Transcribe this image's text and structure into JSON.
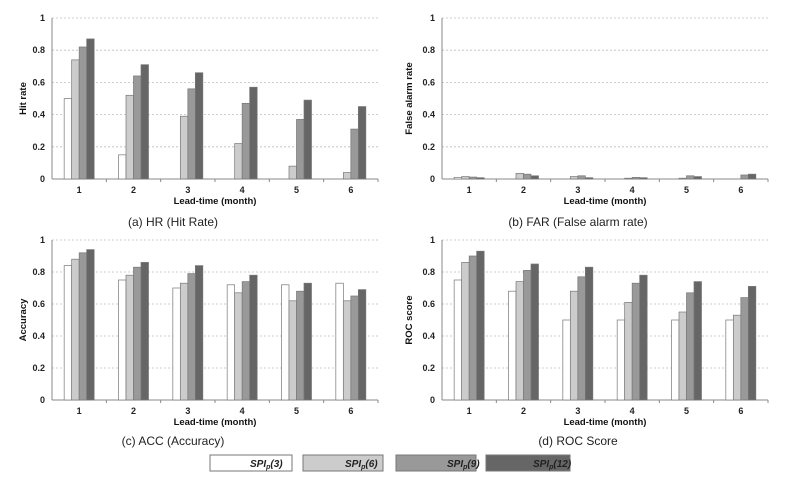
{
  "chart_data": [
    {
      "type": "bar",
      "id": "hr",
      "caption": "(a) HR (Hit Rate)",
      "xlabel": "Lead-time (month)",
      "ylabel": "Hit rate",
      "categories": [
        "1",
        "2",
        "3",
        "4",
        "5",
        "6"
      ],
      "ylim": [
        0,
        1
      ],
      "yticks": [
        "0",
        "0.2",
        "0.4",
        "0.6",
        "0.8",
        "1"
      ],
      "grid": true,
      "series": [
        {
          "name": "SPI_p(3)",
          "values": [
            0.5,
            0.15,
            0.0,
            0.0,
            0.0,
            0.0
          ]
        },
        {
          "name": "SPI_p(6)",
          "values": [
            0.74,
            0.52,
            0.39,
            0.22,
            0.08,
            0.04
          ]
        },
        {
          "name": "SPI_p(9)",
          "values": [
            0.82,
            0.64,
            0.56,
            0.47,
            0.37,
            0.31
          ]
        },
        {
          "name": "SPI_p(12)",
          "values": [
            0.87,
            0.71,
            0.66,
            0.57,
            0.49,
            0.45
          ]
        }
      ]
    },
    {
      "type": "bar",
      "id": "far",
      "caption": "(b) FAR (False alarm rate)",
      "xlabel": "Lead-time (month)",
      "ylabel": "False alarm rate",
      "categories": [
        "1",
        "2",
        "3",
        "4",
        "5",
        "6"
      ],
      "ylim": [
        0,
        1
      ],
      "yticks": [
        "0",
        "0.2",
        "0.4",
        "0.6",
        "0.8",
        "1"
      ],
      "grid": true,
      "series": [
        {
          "name": "SPI_p(3)",
          "values": [
            0.01,
            0.0,
            0.0,
            0.0,
            0.0,
            0.0
          ]
        },
        {
          "name": "SPI_p(6)",
          "values": [
            0.015,
            0.035,
            0.015,
            0.005,
            0.005,
            0.0
          ]
        },
        {
          "name": "SPI_p(9)",
          "values": [
            0.012,
            0.03,
            0.02,
            0.01,
            0.02,
            0.025
          ]
        },
        {
          "name": "SPI_p(12)",
          "values": [
            0.008,
            0.02,
            0.008,
            0.008,
            0.015,
            0.03
          ]
        }
      ]
    },
    {
      "type": "bar",
      "id": "acc",
      "caption": "(c)  ACC (Accuracy)",
      "xlabel": "Lead-time (month)",
      "ylabel": "Accuracy",
      "categories": [
        "1",
        "2",
        "3",
        "4",
        "5",
        "6"
      ],
      "ylim": [
        0,
        1
      ],
      "yticks": [
        "0",
        "0.2",
        "0.4",
        "0.6",
        "0.8",
        "1"
      ],
      "grid": true,
      "series": [
        {
          "name": "SPI_p(3)",
          "values": [
            0.84,
            0.75,
            0.7,
            0.72,
            0.72,
            0.73
          ]
        },
        {
          "name": "SPI_p(6)",
          "values": [
            0.88,
            0.78,
            0.73,
            0.67,
            0.62,
            0.62
          ]
        },
        {
          "name": "SPI_p(9)",
          "values": [
            0.92,
            0.83,
            0.79,
            0.74,
            0.68,
            0.65
          ]
        },
        {
          "name": "SPI_p(12)",
          "values": [
            0.94,
            0.86,
            0.84,
            0.78,
            0.73,
            0.69
          ]
        }
      ]
    },
    {
      "type": "bar",
      "id": "roc",
      "caption": "(d) ROC Score",
      "xlabel": "Lead-time (month)",
      "ylabel": "ROC score",
      "categories": [
        "1",
        "2",
        "3",
        "4",
        "5",
        "6"
      ],
      "ylim": [
        0,
        1
      ],
      "yticks": [
        "0",
        "0.2",
        "0.4",
        "0.6",
        "0.8",
        "1"
      ],
      "grid": true,
      "series": [
        {
          "name": "SPI_p(3)",
          "values": [
            0.75,
            0.68,
            0.5,
            0.5,
            0.5,
            0.5
          ]
        },
        {
          "name": "SPI_p(6)",
          "values": [
            0.86,
            0.74,
            0.68,
            0.61,
            0.55,
            0.53
          ]
        },
        {
          "name": "SPI_p(9)",
          "values": [
            0.9,
            0.81,
            0.77,
            0.73,
            0.67,
            0.64
          ]
        },
        {
          "name": "SPI_p(12)",
          "values": [
            0.93,
            0.85,
            0.83,
            0.78,
            0.74,
            0.71
          ]
        }
      ]
    }
  ],
  "legend": [
    {
      "base": "SPI",
      "sub": "p",
      "suffix": "(3)",
      "color": "#ffffff"
    },
    {
      "base": "SPI",
      "sub": "p",
      "suffix": "(6)",
      "color": "#cccccc"
    },
    {
      "base": "SPI",
      "sub": "p",
      "suffix": "(9)",
      "color": "#999999"
    },
    {
      "base": "SPI",
      "sub": "p",
      "suffix": "(12)",
      "color": "#666666"
    }
  ],
  "colors": {
    "series": [
      "#ffffff",
      "#cccccc",
      "#999999",
      "#666666"
    ],
    "bar_stroke": "#777777",
    "grid": "#bdbdbd",
    "axis": "#888888"
  }
}
